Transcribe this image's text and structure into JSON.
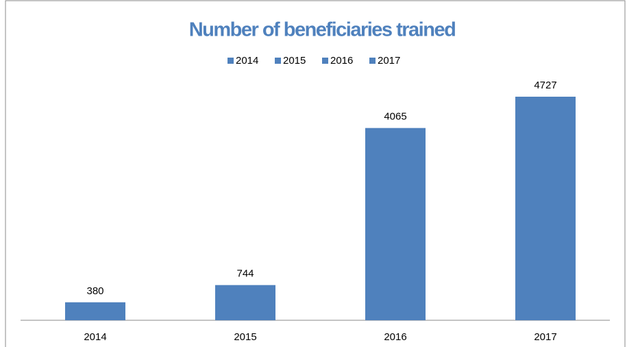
{
  "chart_data": {
    "type": "bar",
    "title": "Number of beneficiaries trained",
    "categories": [
      "2014",
      "2015",
      "2016",
      "2017"
    ],
    "values": [
      380,
      744,
      4065,
      4727
    ],
    "color": "#4f81bd",
    "legend": "top",
    "value_labels_shown": true
  }
}
